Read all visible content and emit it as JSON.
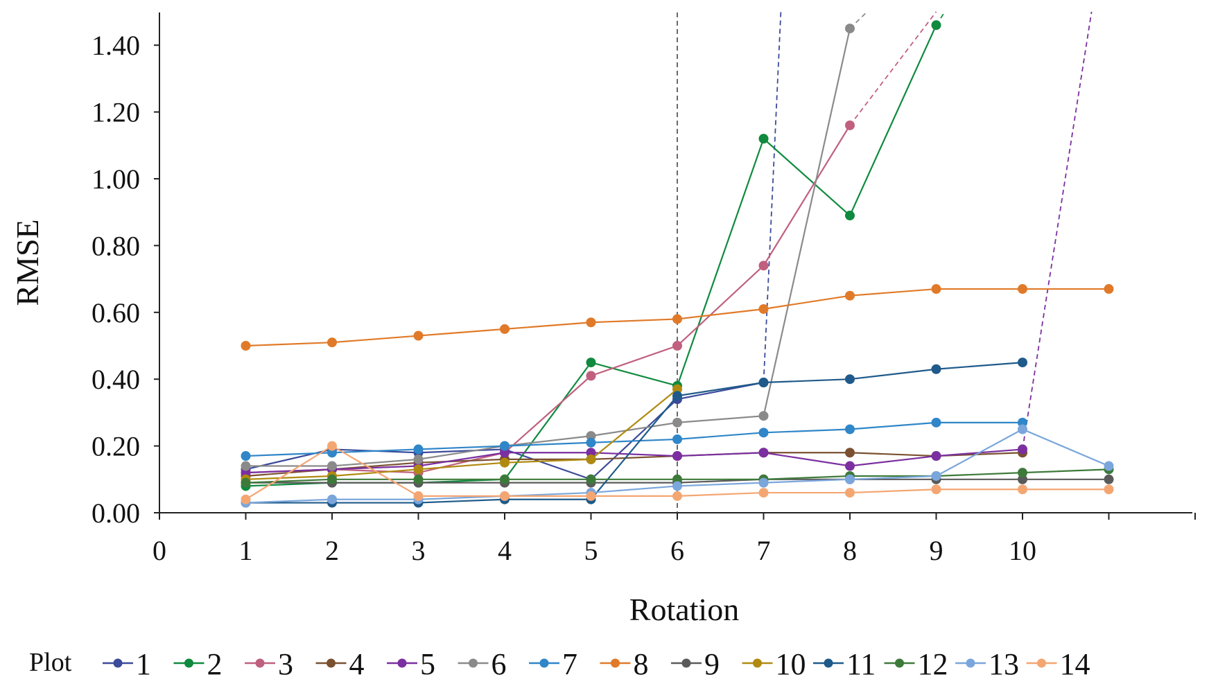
{
  "chart_data": {
    "type": "line",
    "title": "",
    "xlabel": "Rotation",
    "ylabel": "RMSE",
    "xlim": [
      0,
      12
    ],
    "ylim": [
      0,
      1.5
    ],
    "x_ticks": [
      "0",
      "1",
      "2",
      "3",
      "4",
      "5",
      "6",
      "7",
      "8",
      "9",
      "10"
    ],
    "y_ticks": [
      "0.00",
      "0.20",
      "0.40",
      "0.60",
      "0.80",
      "1.00",
      "1.20",
      "1.40"
    ],
    "legend_title": "Plot",
    "legend_position": "bottom",
    "series": [
      {
        "name": "1",
        "color": "#3b4a9a",
        "x": [
          1,
          2,
          3,
          4,
          5,
          6,
          7
        ],
        "y": [
          0.13,
          0.19,
          0.18,
          0.19,
          0.1,
          0.34,
          0.39
        ],
        "dash_to": [
          7.2,
          1.5
        ]
      },
      {
        "name": "2",
        "color": "#0f8a3e",
        "x": [
          1,
          2,
          3,
          4,
          5,
          6,
          7,
          8,
          9
        ],
        "y": [
          0.08,
          0.09,
          0.09,
          0.1,
          0.45,
          0.38,
          1.12,
          0.89,
          1.46
        ],
        "dash_to": [
          9.1,
          1.5
        ]
      },
      {
        "name": "3",
        "color": "#c0607e",
        "x": [
          1,
          2,
          3,
          4,
          5,
          6,
          7,
          8
        ],
        "y": [
          0.12,
          0.13,
          0.12,
          0.18,
          0.41,
          0.5,
          0.74,
          1.16
        ],
        "dash_to": [
          9.0,
          1.5
        ]
      },
      {
        "name": "4",
        "color": "#7a5030",
        "x": [
          1,
          2,
          3,
          4,
          5,
          6,
          7,
          8,
          9,
          10
        ],
        "y": [
          0.11,
          0.13,
          0.15,
          0.16,
          0.16,
          0.17,
          0.18,
          0.18,
          0.17,
          0.18
        ]
      },
      {
        "name": "5",
        "color": "#7b2fa0",
        "x": [
          1,
          2,
          3,
          4,
          5,
          6,
          7,
          8,
          9,
          10
        ],
        "y": [
          0.12,
          0.13,
          0.14,
          0.18,
          0.18,
          0.17,
          0.18,
          0.14,
          0.17,
          0.19
        ],
        "dash_to": [
          10.8,
          1.5
        ]
      },
      {
        "name": "6",
        "color": "#8a8a8a",
        "x": [
          1,
          2,
          3,
          4,
          5,
          6,
          7,
          8
        ],
        "y": [
          0.14,
          0.14,
          0.16,
          0.2,
          0.23,
          0.27,
          0.29,
          1.45
        ],
        "dash_to": [
          8.2,
          1.5
        ]
      },
      {
        "name": "7",
        "color": "#2f86c8",
        "x": [
          1,
          2,
          3,
          4,
          5,
          6,
          7,
          8,
          9,
          10
        ],
        "y": [
          0.17,
          0.18,
          0.19,
          0.2,
          0.21,
          0.22,
          0.24,
          0.25,
          0.27,
          0.27
        ]
      },
      {
        "name": "8",
        "color": "#e07a28",
        "x": [
          1,
          2,
          3,
          4,
          5,
          6,
          7,
          8,
          9,
          10,
          11
        ],
        "y": [
          0.5,
          0.51,
          0.53,
          0.55,
          0.57,
          0.58,
          0.61,
          0.65,
          0.67,
          0.67,
          0.67
        ]
      },
      {
        "name": "9",
        "color": "#5a5a5a",
        "x": [
          1,
          2,
          3,
          4,
          5,
          6,
          7,
          8,
          9,
          10,
          11
        ],
        "y": [
          0.09,
          0.09,
          0.09,
          0.09,
          0.09,
          0.09,
          0.1,
          0.1,
          0.1,
          0.1,
          0.1
        ]
      },
      {
        "name": "10",
        "color": "#b08a10",
        "x": [
          1,
          2,
          3,
          4,
          5,
          6
        ],
        "y": [
          0.1,
          0.11,
          0.13,
          0.15,
          0.16,
          0.37
        ]
      },
      {
        "name": "11",
        "color": "#1f5a8a",
        "x": [
          1,
          2,
          3,
          4,
          5,
          6,
          7,
          8,
          9,
          10
        ],
        "y": [
          0.03,
          0.03,
          0.03,
          0.04,
          0.04,
          0.35,
          0.39,
          0.4,
          0.43,
          0.45
        ]
      },
      {
        "name": "12",
        "color": "#3d7a3a",
        "x": [
          1,
          2,
          3,
          4,
          5,
          6,
          7,
          8,
          9,
          10,
          11
        ],
        "y": [
          0.09,
          0.1,
          0.1,
          0.1,
          0.1,
          0.1,
          0.1,
          0.11,
          0.11,
          0.12,
          0.13
        ]
      },
      {
        "name": "13",
        "color": "#7aa6dc",
        "x": [
          1,
          2,
          3,
          4,
          5,
          6,
          7,
          8,
          9,
          10,
          11
        ],
        "y": [
          0.03,
          0.04,
          0.04,
          0.05,
          0.06,
          0.08,
          0.09,
          0.1,
          0.11,
          0.25,
          0.14
        ]
      },
      {
        "name": "14",
        "color": "#f4a672",
        "x": [
          1,
          2,
          3,
          4,
          5,
          6,
          7,
          8,
          9,
          10,
          11
        ],
        "y": [
          0.04,
          0.2,
          0.05,
          0.05,
          0.05,
          0.05,
          0.06,
          0.06,
          0.07,
          0.07,
          0.07
        ]
      }
    ],
    "reference_lines": [
      {
        "x": 6,
        "color": "#444444",
        "style": "dashed"
      }
    ]
  }
}
